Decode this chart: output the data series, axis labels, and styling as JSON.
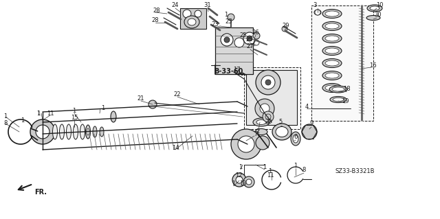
{
  "bg_color": "#ffffff",
  "diagram_code": "SZ33-B3321B",
  "ref_code": "B-33-60",
  "dk": "#1a1a1a",
  "gray": "#888888",
  "lgray": "#cccccc",
  "dkgray": "#555555"
}
